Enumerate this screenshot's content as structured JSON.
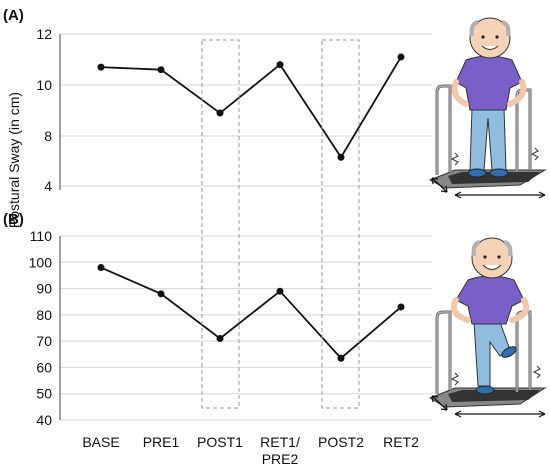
{
  "figure": {
    "ylabel": "Postural Sway (in cm)",
    "categories": [
      "BASE",
      "PRE1",
      "POST1",
      "RET1/\nPRE2",
      "POST2",
      "RET2"
    ],
    "highlight_categories": [
      "POST1",
      "POST2"
    ]
  },
  "chart_data": [
    {
      "type": "line",
      "panel": "(A)",
      "categories": [
        "BASE",
        "PRE1",
        "POST1",
        "RET1/PRE2",
        "POST2",
        "RET2"
      ],
      "series": [
        {
          "values": [
            10.7,
            10.6,
            8.9,
            10.8,
            6.3,
            11.1
          ]
        }
      ],
      "ylabel": "Postural Sway (in cm)",
      "yticks": [
        4,
        8,
        10,
        12
      ],
      "ylim": [
        3.5,
        12
      ],
      "grid": "horizontal",
      "color": "#111111",
      "illustration": "elderly-man-standing-on-balance-platform-icon"
    },
    {
      "type": "line",
      "panel": "(B)",
      "categories": [
        "BASE",
        "PRE1",
        "POST1",
        "RET1/PRE2",
        "POST2",
        "RET2"
      ],
      "series": [
        {
          "values": [
            98,
            88,
            71,
            89,
            63.5,
            83
          ]
        }
      ],
      "ylabel": "Postural Sway (in cm)",
      "yticks": [
        40,
        50,
        60,
        70,
        80,
        90,
        100,
        110
      ],
      "ylim": [
        40,
        110
      ],
      "grid": "horizontal",
      "color": "#111111",
      "illustration": "elderly-man-stepping-on-balance-platform-icon"
    }
  ]
}
